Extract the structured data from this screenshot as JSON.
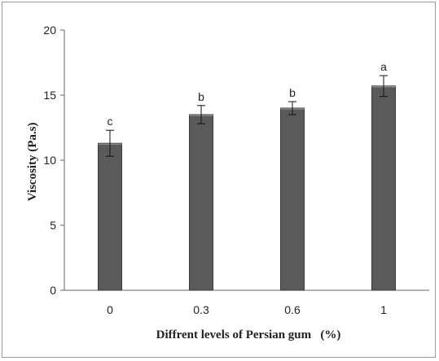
{
  "chart_data": {
    "type": "bar",
    "title": "",
    "xlabel": "Diffrent levels of Persian gum   (%)",
    "ylabel": "Viscosity (Pa.s)",
    "categories": [
      "0",
      "0.3",
      "0.6",
      "1"
    ],
    "values": [
      11.3,
      13.5,
      14.0,
      15.7
    ],
    "errors": [
      1.0,
      0.7,
      0.5,
      0.8
    ],
    "significance_letters": [
      "c",
      "b",
      "b",
      "a"
    ],
    "ylim": [
      0,
      20
    ],
    "yticks": [
      0,
      5,
      10,
      15,
      20
    ],
    "grid": false,
    "legend": "none",
    "bar_color": "#5a5a5a"
  }
}
